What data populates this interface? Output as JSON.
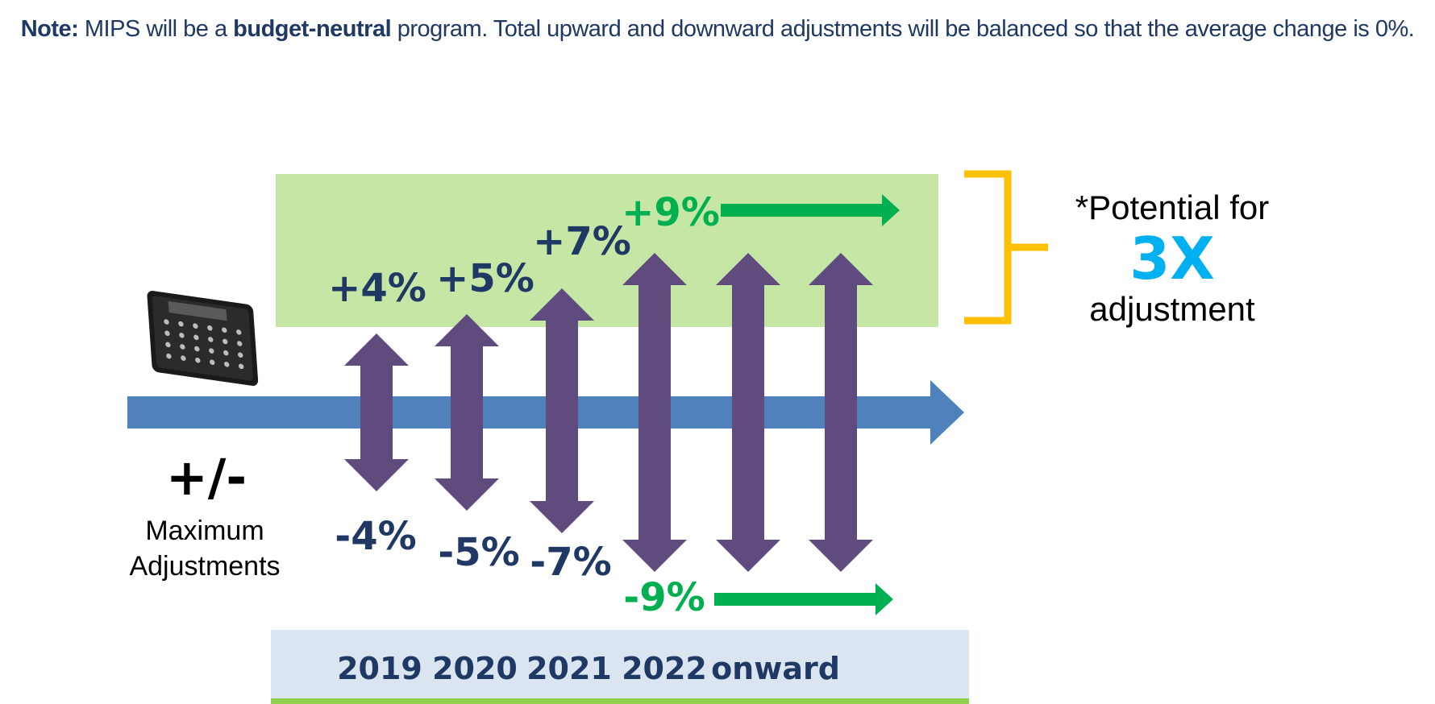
{
  "note": {
    "label": "Note:",
    "part1": " MIPS will be a ",
    "emphasis": "budget-neutral",
    "part2": " program. Total upward and downward adjustments will be balanced so that the average change is 0%."
  },
  "left_label": {
    "symbol": "+/-",
    "line1": "Maximum",
    "line2": "Adjustments"
  },
  "adjustments": [
    {
      "year": "2019",
      "up": "+4%",
      "down": "-4%",
      "max_percent": 4
    },
    {
      "year": "2020",
      "up": "+5%",
      "down": "-5%",
      "max_percent": 5
    },
    {
      "year": "2021",
      "up": "+7%",
      "down": "-7%",
      "max_percent": 7
    },
    {
      "year": "2022 onward",
      "up": "+9%",
      "down": "-9%",
      "max_percent": 9
    }
  ],
  "years": [
    "2019",
    "2020",
    "2021",
    "2022",
    "onward"
  ],
  "callout": {
    "line1": "*Potential for",
    "big": "3X",
    "line2": "adjustment"
  },
  "colors": {
    "navy": "#1f3864",
    "green_text": "#00b050",
    "light_green_band": "#c6e6a6",
    "timeline_blue": "#4f81bd",
    "arrow_purple": "#5f4b7d",
    "bracket_gold": "#ffc000",
    "accent_cyan": "#00b0f0",
    "year_band": "#dae5f1"
  },
  "icons": [
    "calculator-icon"
  ]
}
